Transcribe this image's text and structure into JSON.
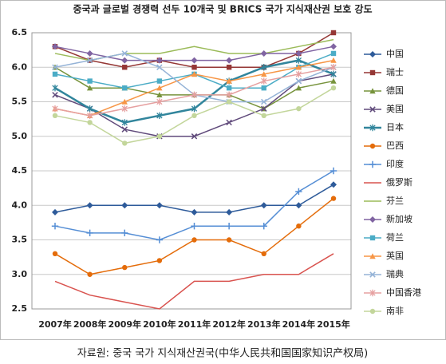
{
  "chart_data": {
    "type": "line",
    "title": "중국과 글로벌 경쟁력 선두 10개국 및 BRICS 국가 지식재산권 보호 강도",
    "caption": "자료원: 중국 국가 지식재산권국(中华人民共和国国家知识产权局)",
    "categories": [
      "2007年",
      "2008年",
      "2009年",
      "2010年",
      "2011年",
      "2012年",
      "2013年",
      "2014年",
      "2015年"
    ],
    "ylim": [
      2.5,
      6.5
    ],
    "yticks": [
      2.5,
      {
        "value": 3,
        "label": "3.0"
      },
      3.5,
      {
        "value": 4,
        "label": "4.0"
      },
      4.5,
      {
        "value": 5,
        "label": "5.0"
      },
      5.5,
      {
        "value": 6,
        "label": "6.0"
      },
      6.5
    ],
    "grid": true,
    "legend": "right",
    "series": [
      {
        "name": "中国",
        "color": "#2e5b9a",
        "marker": "diamond",
        "values": [
          3.9,
          4.0,
          4.0,
          4.0,
          3.9,
          3.9,
          4.0,
          4.0,
          4.3
        ]
      },
      {
        "name": "瑞士",
        "color": "#953735",
        "marker": "square",
        "values": [
          6.3,
          6.1,
          6.0,
          6.1,
          6.0,
          6.0,
          6.0,
          6.2,
          6.5
        ]
      },
      {
        "name": "德国",
        "color": "#77933c",
        "marker": "triangle",
        "values": [
          6.0,
          5.7,
          5.7,
          5.6,
          5.6,
          5.6,
          5.4,
          5.7,
          5.8
        ]
      },
      {
        "name": "美国",
        "color": "#604a7b",
        "marker": "x",
        "values": [
          5.6,
          5.4,
          5.1,
          5.0,
          5.0,
          5.2,
          5.4,
          5.8,
          5.9
        ]
      },
      {
        "name": "日本",
        "color": "#31859c",
        "marker": "star",
        "width": 2.5,
        "values": [
          5.7,
          5.4,
          5.2,
          5.3,
          5.4,
          5.8,
          6.0,
          6.1,
          5.9
        ]
      },
      {
        "name": "巴西",
        "color": "#e46c0a",
        "marker": "circle",
        "values": [
          3.3,
          3.0,
          3.1,
          3.2,
          3.5,
          3.5,
          3.3,
          3.7,
          4.1
        ]
      },
      {
        "name": "印度",
        "color": "#558ed5",
        "marker": "plus",
        "values": [
          3.7,
          3.6,
          3.6,
          3.5,
          3.7,
          3.7,
          3.7,
          4.2,
          4.5
        ]
      },
      {
        "name": "俄罗斯",
        "color": "#d9534f",
        "marker": "none",
        "values": [
          2.9,
          2.7,
          2.6,
          2.5,
          2.9,
          2.9,
          3.0,
          3.0,
          3.3
        ]
      },
      {
        "name": "芬兰",
        "color": "#9bbb59",
        "marker": "none",
        "values": [
          6.2,
          6.1,
          6.2,
          6.2,
          6.3,
          6.2,
          6.2,
          6.3,
          6.4
        ]
      },
      {
        "name": "新加坡",
        "color": "#8064a2",
        "marker": "diamond",
        "values": [
          6.3,
          6.2,
          6.1,
          6.1,
          6.1,
          6.1,
          6.2,
          6.2,
          6.3
        ]
      },
      {
        "name": "荷兰",
        "color": "#4bacc6",
        "marker": "square",
        "values": [
          5.9,
          5.8,
          5.7,
          5.8,
          5.9,
          5.7,
          5.7,
          6.0,
          6.2
        ]
      },
      {
        "name": "英国",
        "color": "#f79646",
        "marker": "triangle",
        "values": [
          5.4,
          5.3,
          5.5,
          5.7,
          5.9,
          5.8,
          5.9,
          6.0,
          6.1
        ]
      },
      {
        "name": "瑞典",
        "color": "#95b3d7",
        "marker": "x",
        "values": [
          6.0,
          6.1,
          6.2,
          6.0,
          5.6,
          5.5,
          5.5,
          5.8,
          6.0
        ]
      },
      {
        "name": "中国香港",
        "color": "#e6a0a0",
        "marker": "star",
        "values": [
          5.4,
          5.3,
          5.4,
          5.5,
          5.6,
          5.6,
          5.8,
          5.9,
          6.0
        ]
      },
      {
        "name": "南非",
        "color": "#c3d69b",
        "marker": "circle",
        "values": [
          5.3,
          5.2,
          4.9,
          5.0,
          5.3,
          5.5,
          5.3,
          5.4,
          5.7
        ]
      }
    ]
  }
}
